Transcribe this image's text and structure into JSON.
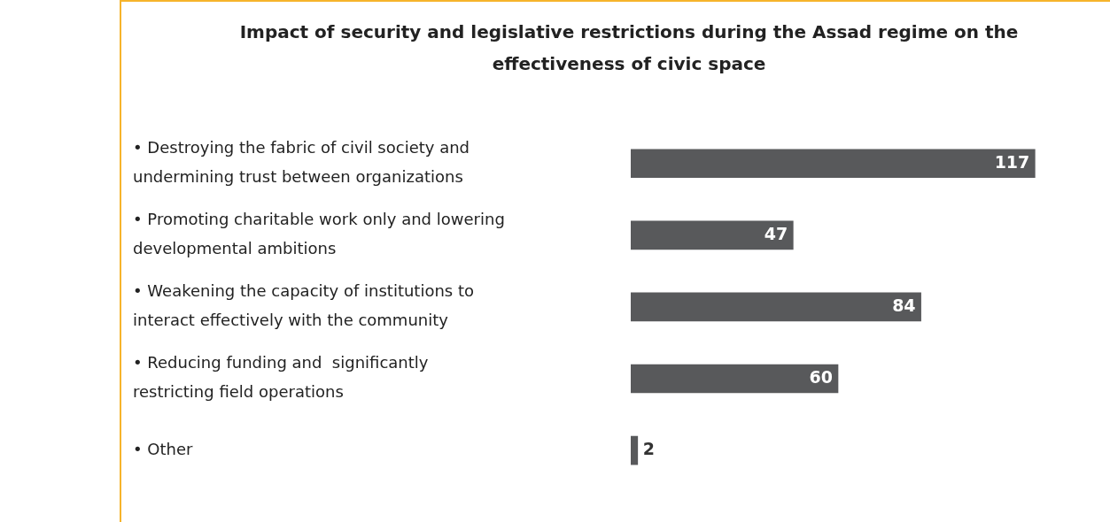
{
  "chart_data": {
    "type": "bar",
    "orientation": "horizontal",
    "title": "Impact of security and legislative restrictions during the Assad regime on the effectiveness of civic space",
    "categories": [
      "• Destroying the fabric of civil society and undermining trust between organizations",
      "• Promoting charitable work only and lowering developmental ambitions",
      "• Weakening the capacity of institutions to  interact effectively with the community",
      "• Reducing funding and  significantly restricting field operations",
      "• Other"
    ],
    "values": [
      117,
      47,
      84,
      60,
      2
    ],
    "color": "#58595b",
    "data_labels": true,
    "grid": false,
    "legend": false,
    "tick_labels": "y"
  }
}
